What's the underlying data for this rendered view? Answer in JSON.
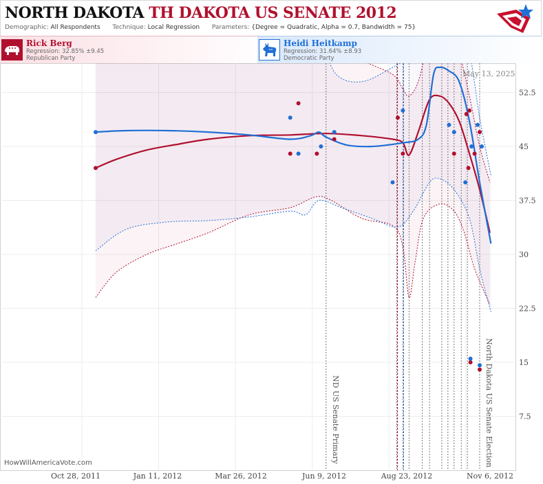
{
  "header": {
    "title_main": "NORTH DAKOTA",
    "title_sub": "TH DAKOTA US SENATE 2012",
    "demographic_label": "Demographic:",
    "demographic_value": "All Respondents",
    "technique_label": "Technique:",
    "technique_value": "Local Regression",
    "parameters_label": "Parameters:",
    "parameters_value": "{Degree = Quadratic, Alpha = 0.7, Bandwidth = 75}"
  },
  "candidates": {
    "rep": {
      "name": "Rick Berg",
      "regression": "Regression: 32.85% ±9.45",
      "party": "Republican Party",
      "icon": "elephant-icon",
      "color": "#b0102e"
    },
    "dem": {
      "name": "Heidi Heitkamp",
      "regression": "Regression: 31.64% ±8.93",
      "party": "Democratic Party",
      "icon": "donkey-icon",
      "color": "#1f6fd6"
    }
  },
  "watermark": "HowWillAmericaVote.com",
  "datestamp": "May 13, 2025",
  "chart_data": {
    "type": "line",
    "x_ticks": [
      "Oct 28, 2011",
      "Jan 11, 2012",
      "Mar 26, 2012",
      "Jun 9, 2012",
      "Aug 23, 2012",
      "Nov 6, 2012"
    ],
    "y_ticks": [
      "7.5",
      "15",
      "22.5",
      "30",
      "37.5",
      "45",
      "52.5"
    ],
    "ylim": [
      0,
      58
    ],
    "xlim_days": [
      -60,
      390
    ],
    "grid": true,
    "events": [
      {
        "label": "ND US Senate Primary",
        "day": 225
      },
      {
        "label": "North Dakota US Senate Election",
        "day": 375
      }
    ],
    "extra_marker_days": [
      294,
      300,
      306,
      319,
      326,
      338,
      344,
      350,
      357,
      363
    ],
    "series": [
      {
        "name": "Rick Berg",
        "color": "#b0102e",
        "trend": [
          [
            0,
            42
          ],
          [
            20,
            43.2
          ],
          [
            50,
            44.5
          ],
          [
            80,
            45.3
          ],
          [
            110,
            46
          ],
          [
            150,
            46.5
          ],
          [
            190,
            46.6
          ],
          [
            225,
            46.8
          ],
          [
            260,
            46.5
          ],
          [
            290,
            46
          ],
          [
            300,
            45.5
          ],
          [
            306,
            43.8
          ],
          [
            315,
            47
          ],
          [
            326,
            51.5
          ],
          [
            336,
            52
          ],
          [
            345,
            51
          ],
          [
            355,
            48.5
          ],
          [
            365,
            44
          ],
          [
            375,
            39
          ],
          [
            385,
            33
          ]
        ],
        "upper": [
          [
            0,
            84
          ],
          [
            20,
            82
          ],
          [
            50,
            80
          ],
          [
            80,
            78
          ],
          [
            110,
            75
          ],
          [
            150,
            69
          ],
          [
            190,
            64
          ],
          [
            225,
            60
          ],
          [
            260,
            57
          ],
          [
            290,
            55
          ],
          [
            300,
            53
          ],
          [
            306,
            52
          ],
          [
            315,
            54
          ],
          [
            326,
            60
          ],
          [
            336,
            62
          ],
          [
            345,
            61
          ],
          [
            355,
            58
          ],
          [
            365,
            52
          ],
          [
            375,
            45
          ],
          [
            385,
            40
          ]
        ],
        "lower": [
          [
            0,
            24
          ],
          [
            20,
            27.5
          ],
          [
            50,
            30
          ],
          [
            80,
            31.5
          ],
          [
            110,
            33
          ],
          [
            150,
            35.5
          ],
          [
            190,
            36.5
          ],
          [
            215,
            38
          ],
          [
            230,
            37.5
          ],
          [
            260,
            35
          ],
          [
            290,
            34
          ],
          [
            300,
            31
          ],
          [
            306,
            24
          ],
          [
            312,
            29
          ],
          [
            320,
            35
          ],
          [
            336,
            37
          ],
          [
            350,
            36
          ],
          [
            360,
            33
          ],
          [
            370,
            28
          ],
          [
            385,
            23
          ]
        ],
        "points": [
          [
            0,
            42
          ],
          [
            190,
            44
          ],
          [
            198,
            51
          ],
          [
            216,
            44
          ],
          [
            233,
            46
          ],
          [
            295,
            49
          ],
          [
            300,
            44
          ],
          [
            350,
            44
          ],
          [
            362,
            49.5
          ],
          [
            364,
            42
          ],
          [
            365,
            50
          ],
          [
            370,
            44
          ],
          [
            375,
            47
          ],
          [
            366,
            15
          ],
          [
            375,
            14
          ]
        ]
      },
      {
        "name": "Heidi Heitkamp",
        "color": "#1f6fd6",
        "trend": [
          [
            0,
            47
          ],
          [
            30,
            47.2
          ],
          [
            70,
            47.2
          ],
          [
            110,
            47
          ],
          [
            150,
            46.6
          ],
          [
            190,
            46
          ],
          [
            210,
            46.5
          ],
          [
            218,
            47
          ],
          [
            225,
            46.3
          ],
          [
            245,
            45.2
          ],
          [
            270,
            45
          ],
          [
            300,
            45.5
          ],
          [
            315,
            46
          ],
          [
            323,
            48
          ],
          [
            330,
            55
          ],
          [
            336,
            56
          ],
          [
            345,
            55.5
          ],
          [
            355,
            54
          ],
          [
            365,
            48.5
          ],
          [
            375,
            40
          ],
          [
            386,
            31.5
          ]
        ],
        "upper": [
          [
            0,
            70
          ],
          [
            30,
            71
          ],
          [
            70,
            72
          ],
          [
            110,
            70
          ],
          [
            150,
            68
          ],
          [
            190,
            62
          ],
          [
            205,
            58
          ],
          [
            210,
            58
          ],
          [
            218,
            60
          ],
          [
            235,
            55
          ],
          [
            260,
            54
          ],
          [
            290,
            56
          ],
          [
            310,
            58
          ],
          [
            323,
            62
          ],
          [
            336,
            66
          ],
          [
            350,
            64
          ],
          [
            365,
            58
          ],
          [
            375,
            49
          ],
          [
            386,
            41
          ]
        ],
        "lower": [
          [
            0,
            30.5
          ],
          [
            30,
            33.5
          ],
          [
            70,
            34.5
          ],
          [
            110,
            34.7
          ],
          [
            150,
            35.2
          ],
          [
            190,
            36
          ],
          [
            205,
            35.5
          ],
          [
            218,
            37.5
          ],
          [
            240,
            36.5
          ],
          [
            270,
            35
          ],
          [
            295,
            33.8
          ],
          [
            310,
            36
          ],
          [
            326,
            40
          ],
          [
            336,
            40.5
          ],
          [
            350,
            39
          ],
          [
            365,
            35
          ],
          [
            375,
            28
          ],
          [
            386,
            22
          ]
        ],
        "points": [
          [
            0,
            47
          ],
          [
            190,
            49
          ],
          [
            198,
            44
          ],
          [
            220,
            45
          ],
          [
            233,
            47
          ],
          [
            290,
            40
          ],
          [
            300,
            50
          ],
          [
            345,
            48
          ],
          [
            350,
            47
          ],
          [
            361,
            40
          ],
          [
            367,
            45
          ],
          [
            373,
            48
          ],
          [
            377,
            45
          ],
          [
            366,
            15.5
          ],
          [
            375,
            14.6
          ]
        ]
      }
    ]
  }
}
